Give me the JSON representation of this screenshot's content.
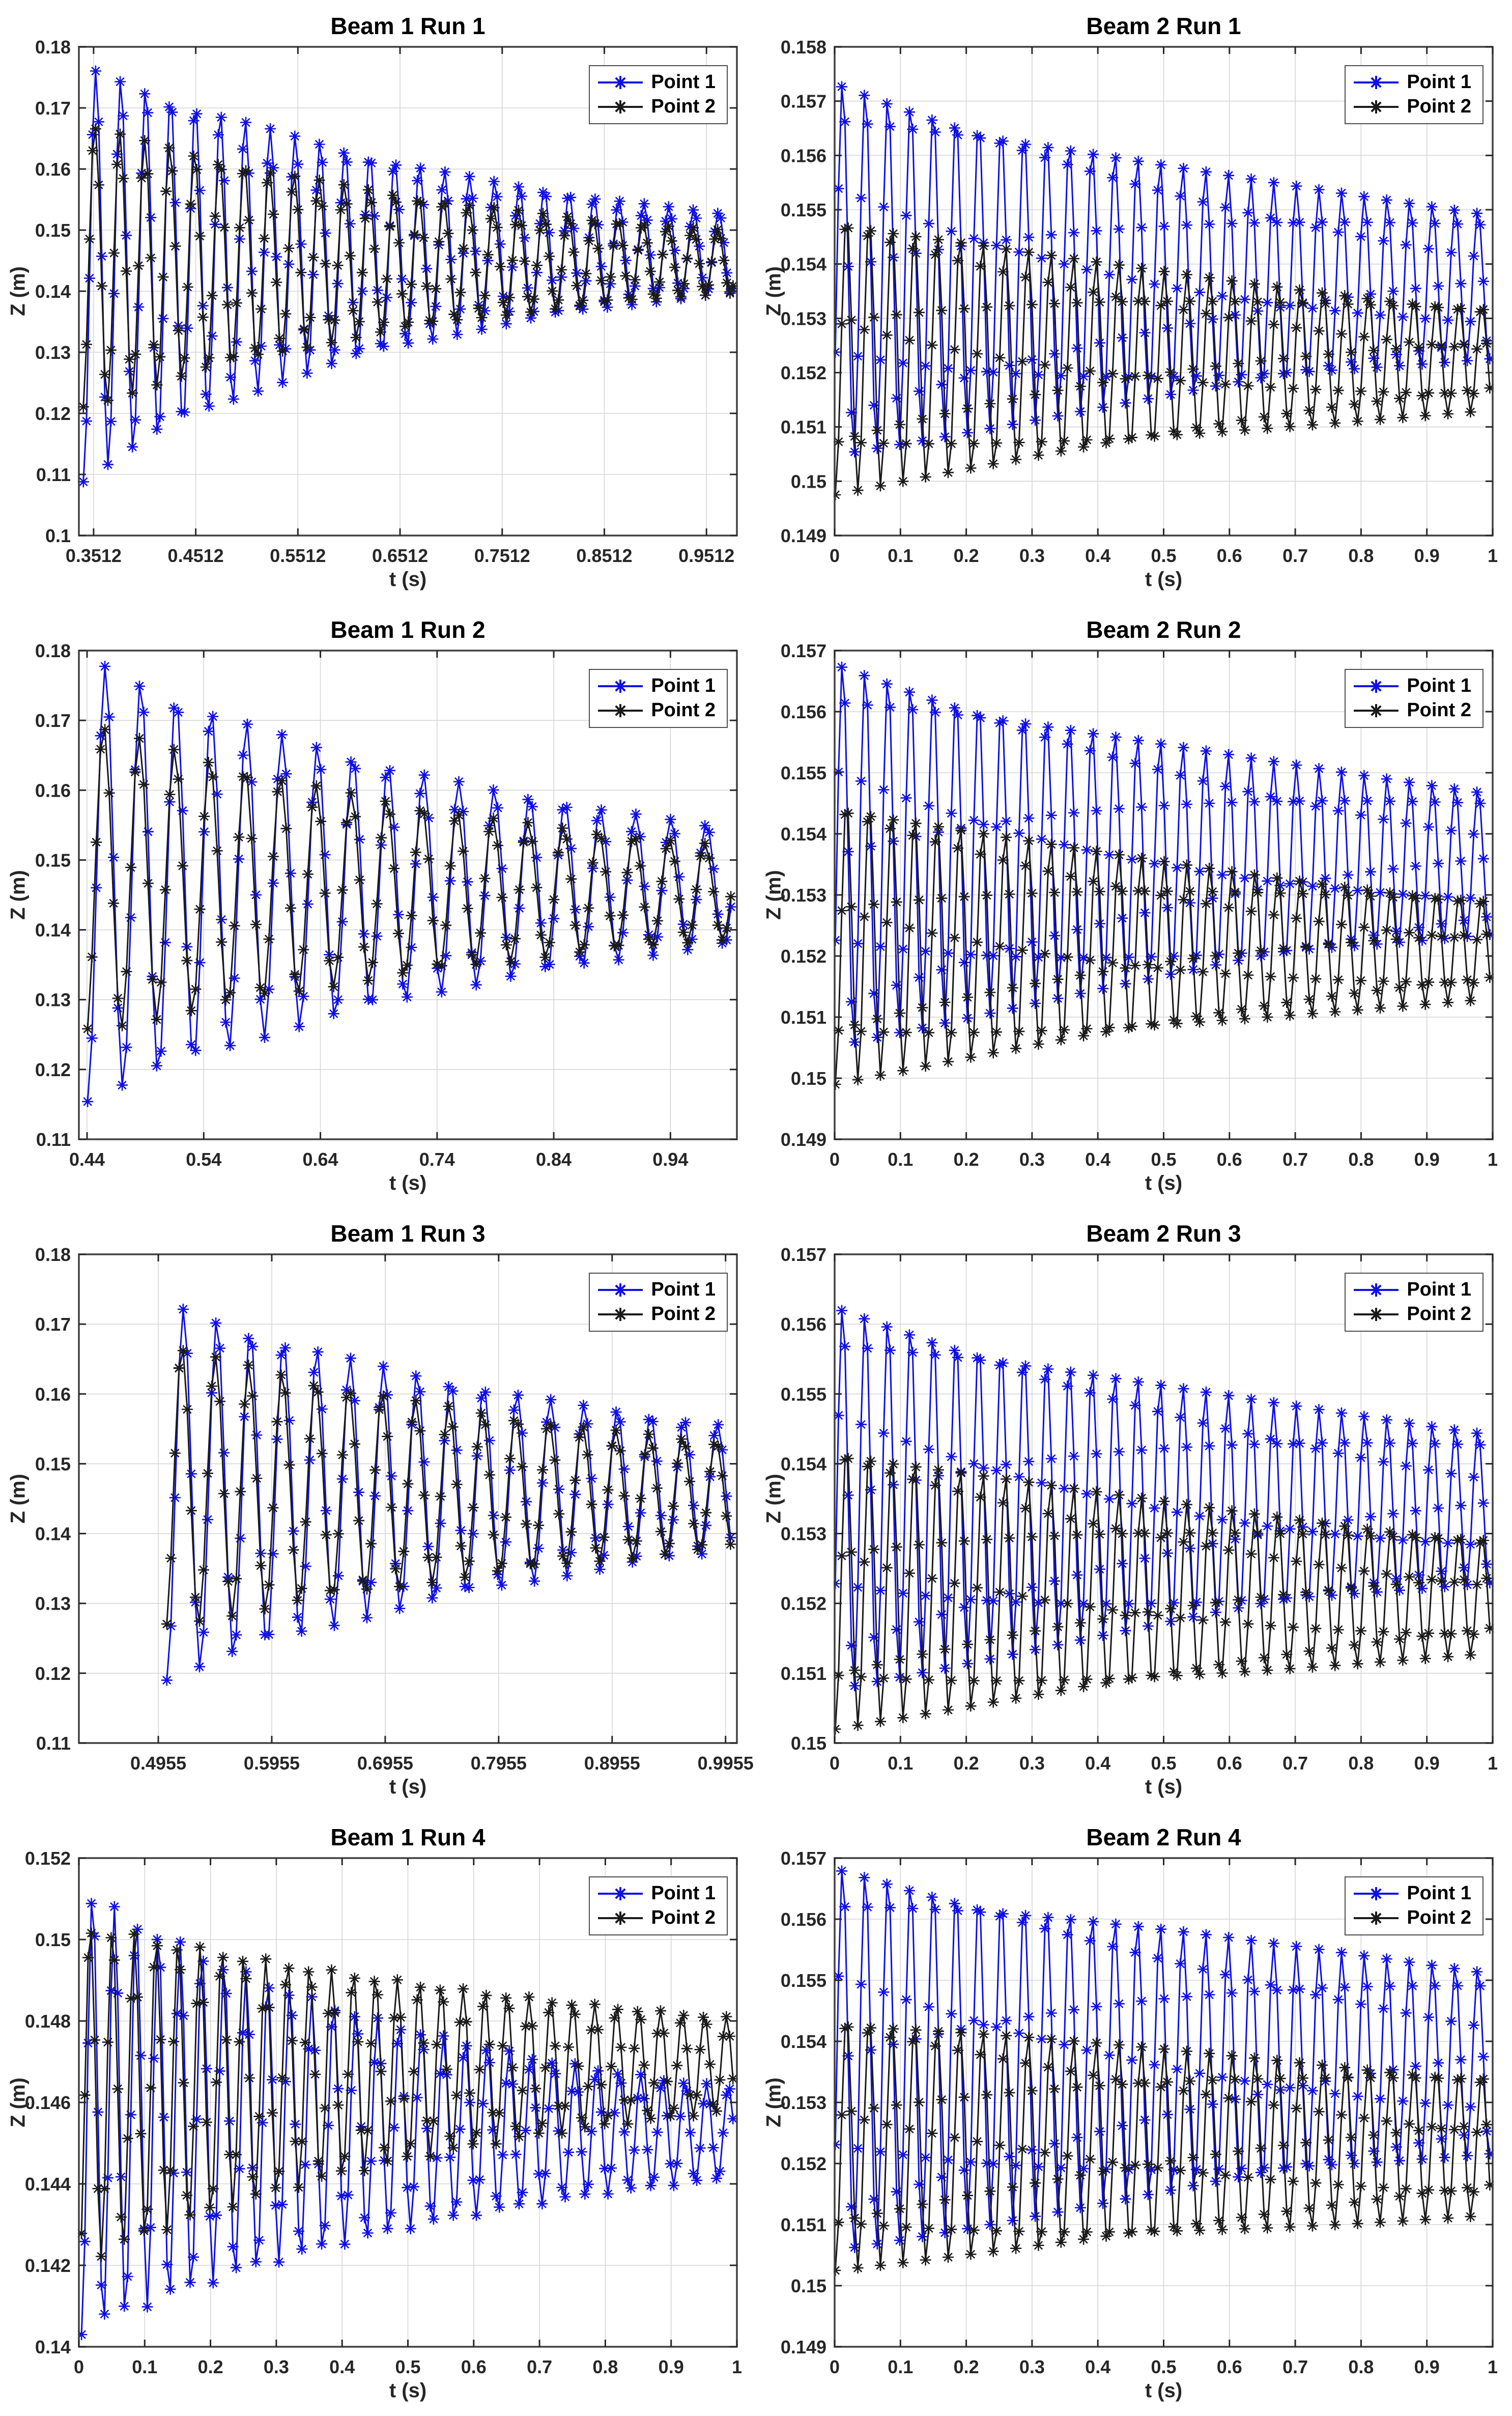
{
  "page": {
    "background": "#ffffff",
    "layout": "4x2 subplot grid"
  },
  "colors": {
    "point1": "#0F0FE6",
    "point2": "#1a1a1a",
    "grid": "#d6d6d6",
    "axis": "#404040",
    "tick_text": "#262626"
  },
  "legend": {
    "position": "top-right",
    "entries": [
      "Point 1",
      "Point 2"
    ]
  },
  "chart_data": [
    {
      "type": "line",
      "title": "Beam 1 Run 1",
      "xlabel": "t (s)",
      "ylabel": "Z (m)",
      "grid": true,
      "legend_position": "top-right",
      "xlim": [
        0.3368,
        0.981
      ],
      "ylim": [
        0.1,
        0.18
      ],
      "xtick_values": [
        0.3512,
        0.4512,
        0.5512,
        0.6512,
        0.7512,
        0.8512,
        0.9512
      ],
      "xtick_labels": [
        "0.3512",
        "0.4512",
        "0.5512",
        "0.6512",
        "0.7512",
        "0.8512",
        "0.9512"
      ],
      "ytick_values": [
        0.1,
        0.11,
        0.12,
        0.13,
        0.14,
        0.15,
        0.16,
        0.17,
        0.18
      ],
      "ytick_labels": [
        "0.1",
        "0.11",
        "0.12",
        "0.13",
        "0.14",
        "0.15",
        "0.16",
        "0.17",
        "0.18"
      ],
      "series": [
        {
          "name": "Point 1",
          "color": "#0F0FE6",
          "marker": "*",
          "t_start": 0.3412,
          "t_end": 0.979,
          "dt": 0.003,
          "mean_start": 0.1428,
          "mean_end": 0.1462,
          "mean_tau": 0.12,
          "amp0": 0.034,
          "damping": 2.6,
          "freq_hz": 41,
          "phase_rad": -1.5708
        },
        {
          "name": "Point 2",
          "color": "#1a1a1a",
          "marker": "*",
          "t_start": 0.3412,
          "t_end": 0.979,
          "dt": 0.003,
          "mean_start": 0.144,
          "mean_end": 0.1448,
          "mean_tau": 0.12,
          "amp0": 0.0235,
          "damping": 2.4,
          "freq_hz": 41,
          "phase_rad": -1.35
        }
      ]
    },
    {
      "type": "line",
      "title": "Beam 2 Run 1",
      "xlabel": "t (s)",
      "ylabel": "Z (m)",
      "grid": true,
      "legend_position": "top-right",
      "xlim": [
        0,
        1
      ],
      "ylim": [
        0.149,
        0.158
      ],
      "xtick_values": [
        0,
        0.1,
        0.2,
        0.3,
        0.4,
        0.5,
        0.6,
        0.7,
        0.8,
        0.9,
        1
      ],
      "xtick_labels": [
        "0",
        "0.1",
        "0.2",
        "0.3",
        "0.4",
        "0.5",
        "0.6",
        "0.7",
        "0.8",
        "0.9",
        "1"
      ],
      "ytick_values": [
        0.149,
        0.15,
        0.151,
        0.152,
        0.153,
        0.154,
        0.155,
        0.156,
        0.157,
        0.158
      ],
      "ytick_labels": [
        "0.149",
        "0.15",
        "0.151",
        "0.152",
        "0.153",
        "0.154",
        "0.155",
        "0.156",
        "0.157",
        "0.158"
      ],
      "series": [
        {
          "name": "Point 1",
          "color": "#0F0FE6",
          "marker": "*",
          "t_start": 0.001,
          "t_end": 0.999,
          "dt": 0.0049,
          "mean_start": 0.1539,
          "mean_end": 0.15355,
          "mean_tau": 0.5,
          "amp0": 0.0035,
          "damping": 0.95,
          "freq_hz": 29,
          "phase_rad": -0.45
        },
        {
          "name": "Point 2",
          "color": "#1a1a1a",
          "marker": "*",
          "t_start": 0.001,
          "t_end": 0.999,
          "dt": 0.0049,
          "mean_start": 0.15235,
          "mean_end": 0.15225,
          "mean_tau": 0.5,
          "amp0": 0.0026,
          "damping": 1.0,
          "freq_hz": 29,
          "phase_rad": -1.5708
        }
      ]
    },
    {
      "type": "line",
      "title": "Beam 1 Run 2",
      "xlabel": "t (s)",
      "ylabel": "Z (m)",
      "grid": true,
      "legend_position": "top-right",
      "xlim": [
        0.433,
        0.997
      ],
      "ylim": [
        0.11,
        0.18
      ],
      "xtick_values": [
        0.44,
        0.54,
        0.64,
        0.74,
        0.84,
        0.94
      ],
      "xtick_labels": [
        "0.44",
        "0.54",
        "0.64",
        "0.74",
        "0.84",
        "0.94"
      ],
      "ytick_values": [
        0.11,
        0.12,
        0.13,
        0.14,
        0.15,
        0.16,
        0.17,
        0.18
      ],
      "ytick_labels": [
        "0.11",
        "0.12",
        "0.13",
        "0.14",
        "0.15",
        "0.16",
        "0.17",
        "0.18"
      ],
      "series": [
        {
          "name": "Point 1",
          "color": "#0F0FE6",
          "marker": "*",
          "t_start": 0.4405,
          "t_end": 0.9945,
          "dt": 0.0037,
          "mean_start": 0.1472,
          "mean_end": 0.1462,
          "mean_tau": 0.2,
          "amp0": 0.0318,
          "damping": 2.4,
          "freq_hz": 33,
          "phase_rad": -1.5708
        },
        {
          "name": "Point 2",
          "color": "#1a1a1a",
          "marker": "*",
          "t_start": 0.4405,
          "t_end": 0.9945,
          "dt": 0.0037,
          "mean_start": 0.1475,
          "mean_end": 0.1452,
          "mean_tau": 0.2,
          "amp0": 0.0225,
          "damping": 2.2,
          "freq_hz": 33,
          "phase_rad": -1.3
        }
      ]
    },
    {
      "type": "line",
      "title": "Beam 2 Run 2",
      "xlabel": "t (s)",
      "ylabel": "Z (m)",
      "grid": true,
      "legend_position": "top-right",
      "xlim": [
        0,
        1
      ],
      "ylim": [
        0.149,
        0.157
      ],
      "xtick_values": [
        0,
        0.1,
        0.2,
        0.3,
        0.4,
        0.5,
        0.6,
        0.7,
        0.8,
        0.9,
        1
      ],
      "xtick_labels": [
        "0",
        "0.1",
        "0.2",
        "0.3",
        "0.4",
        "0.5",
        "0.6",
        "0.7",
        "0.8",
        "0.9",
        "1"
      ],
      "ytick_values": [
        0.149,
        0.15,
        0.151,
        0.152,
        0.153,
        0.154,
        0.155,
        0.156,
        0.157
      ],
      "ytick_labels": [
        "0.149",
        "0.15",
        "0.151",
        "0.152",
        "0.153",
        "0.154",
        "0.155",
        "0.156",
        "0.157"
      ],
      "series": [
        {
          "name": "Point 1",
          "color": "#0F0FE6",
          "marker": "*",
          "t_start": 0.001,
          "t_end": 0.999,
          "dt": 0.0049,
          "mean_start": 0.15365,
          "mean_end": 0.1535,
          "mean_tau": 0.5,
          "amp0": 0.0032,
          "damping": 1.0,
          "freq_hz": 29,
          "phase_rad": -0.45
        },
        {
          "name": "Point 2",
          "color": "#1a1a1a",
          "marker": "*",
          "t_start": 0.001,
          "t_end": 0.999,
          "dt": 0.0049,
          "mean_start": 0.15225,
          "mean_end": 0.1521,
          "mean_tau": 0.5,
          "amp0": 0.00235,
          "damping": 1.05,
          "freq_hz": 29,
          "phase_rad": -1.5708
        }
      ]
    },
    {
      "type": "line",
      "title": "Beam 1 Run 3",
      "xlabel": "t (s)",
      "ylabel": "Z (m)",
      "grid": true,
      "legend_position": "top-right",
      "xlim": [
        0.4255,
        1.0055
      ],
      "ylim": [
        0.11,
        0.18
      ],
      "xtick_values": [
        0.4955,
        0.5955,
        0.6955,
        0.7955,
        0.8955,
        0.9955
      ],
      "xtick_labels": [
        "0.4955",
        "0.5955",
        "0.6955",
        "0.7955",
        "0.8955",
        "0.9955"
      ],
      "ytick_values": [
        0.11,
        0.12,
        0.13,
        0.14,
        0.15,
        0.16,
        0.17,
        0.18
      ],
      "ytick_labels": [
        "0.11",
        "0.12",
        "0.13",
        "0.14",
        "0.15",
        "0.16",
        "0.17",
        "0.18"
      ],
      "series": [
        {
          "name": "Point 1",
          "color": "#0F0FE6",
          "marker": "*",
          "t_start": 0.503,
          "t_end": 1.0005,
          "dt": 0.0036,
          "mean_start": 0.146,
          "mean_end": 0.1465,
          "mean_tau": 0.25,
          "amp0": 0.027,
          "damping": 2.2,
          "freq_hz": 34,
          "phase_rad": -1.5708
        },
        {
          "name": "Point 2",
          "color": "#1a1a1a",
          "marker": "*",
          "t_start": 0.503,
          "t_end": 1.0005,
          "dt": 0.0036,
          "mean_start": 0.1468,
          "mean_end": 0.1452,
          "mean_tau": 0.25,
          "amp0": 0.0205,
          "damping": 2.0,
          "freq_hz": 34,
          "phase_rad": -1.3
        }
      ]
    },
    {
      "type": "line",
      "title": "Beam 2 Run 3",
      "xlabel": "t (s)",
      "ylabel": "Z (m)",
      "grid": true,
      "legend_position": "top-right",
      "xlim": [
        0,
        1
      ],
      "ylim": [
        0.15,
        0.157
      ],
      "xtick_values": [
        0,
        0.1,
        0.2,
        0.3,
        0.4,
        0.5,
        0.6,
        0.7,
        0.8,
        0.9,
        1
      ],
      "xtick_labels": [
        "0",
        "0.1",
        "0.2",
        "0.3",
        "0.4",
        "0.5",
        "0.6",
        "0.7",
        "0.8",
        "0.9",
        "1"
      ],
      "ytick_values": [
        0.15,
        0.151,
        0.152,
        0.153,
        0.154,
        0.155,
        0.156,
        0.157
      ],
      "ytick_labels": [
        "0.15",
        "0.151",
        "0.152",
        "0.153",
        "0.154",
        "0.155",
        "0.156",
        "0.157"
      ],
      "series": [
        {
          "name": "Point 1",
          "color": "#0F0FE6",
          "marker": "*",
          "t_start": 0.001,
          "t_end": 0.999,
          "dt": 0.0049,
          "mean_start": 0.1535,
          "mean_end": 0.15335,
          "mean_tau": 0.5,
          "amp0": 0.0028,
          "damping": 0.95,
          "freq_hz": 29,
          "phase_rad": -0.45
        },
        {
          "name": "Point 2",
          "color": "#1a1a1a",
          "marker": "*",
          "t_start": 0.001,
          "t_end": 0.999,
          "dt": 0.0049,
          "mean_start": 0.15225,
          "mean_end": 0.1521,
          "mean_tau": 0.5,
          "amp0": 0.00205,
          "damping": 0.9,
          "freq_hz": 29,
          "phase_rad": -1.5708
        }
      ]
    },
    {
      "type": "line",
      "title": "Beam 1 Run 4",
      "xlabel": "t (s)",
      "ylabel": "Z (m)",
      "grid": true,
      "legend_position": "top-right",
      "xlim": [
        0,
        1
      ],
      "ylim": [
        0.14,
        0.152
      ],
      "xtick_values": [
        0,
        0.1,
        0.2,
        0.3,
        0.4,
        0.5,
        0.6,
        0.7,
        0.8,
        0.9,
        1
      ],
      "xtick_labels": [
        "0",
        "0.1",
        "0.2",
        "0.3",
        "0.4",
        "0.5",
        "0.6",
        "0.7",
        "0.8",
        "0.9",
        "1"
      ],
      "ytick_values": [
        0.14,
        0.142,
        0.144,
        0.146,
        0.148,
        0.15,
        0.152
      ],
      "ytick_labels": [
        "0.14",
        "0.142",
        "0.144",
        "0.146",
        "0.148",
        "0.15",
        "0.152"
      ],
      "series": [
        {
          "name": "Point 1",
          "color": "#0F0FE6",
          "marker": "*",
          "t_start": 0.004,
          "t_end": 0.998,
          "dt": 0.005,
          "mean_start": 0.1458,
          "mean_end": 0.1452,
          "mean_tau": 0.4,
          "amp0": 0.0055,
          "damping": 1.6,
          "freq_hz": 30,
          "phase_rad": -1.5708
        },
        {
          "name": "Point 2",
          "color": "#1a1a1a",
          "marker": "*",
          "t_start": 0.004,
          "t_end": 0.998,
          "dt": 0.005,
          "mean_start": 0.1462,
          "mean_end": 0.147,
          "mean_tau": 0.4,
          "amp0": 0.0042,
          "damping": 1.3,
          "freq_hz": 30,
          "phase_rad": -0.95
        }
      ]
    },
    {
      "type": "line",
      "title": "Beam 2 Run 4",
      "xlabel": "t (s)",
      "ylabel": "Z (m)",
      "grid": true,
      "legend_position": "top-right",
      "xlim": [
        0,
        1
      ],
      "ylim": [
        0.149,
        0.157
      ],
      "xtick_values": [
        0,
        0.1,
        0.2,
        0.3,
        0.4,
        0.5,
        0.6,
        0.7,
        0.8,
        0.9,
        1
      ],
      "xtick_labels": [
        "0",
        "0.1",
        "0.2",
        "0.3",
        "0.4",
        "0.5",
        "0.6",
        "0.7",
        "0.8",
        "0.9",
        "1"
      ],
      "ytick_values": [
        0.149,
        0.15,
        0.151,
        0.152,
        0.153,
        0.154,
        0.155,
        0.156,
        0.157
      ],
      "ytick_labels": [
        "0.149",
        "0.15",
        "0.151",
        "0.152",
        "0.153",
        "0.154",
        "0.155",
        "0.156",
        "0.157"
      ],
      "series": [
        {
          "name": "Point 1",
          "color": "#0F0FE6",
          "marker": "*",
          "t_start": 0.001,
          "t_end": 0.999,
          "dt": 0.0049,
          "mean_start": 0.1537,
          "mean_end": 0.15365,
          "mean_tau": 0.5,
          "amp0": 0.0032,
          "damping": 0.75,
          "freq_hz": 29,
          "phase_rad": -0.45
        },
        {
          "name": "Point 2",
          "color": "#1a1a1a",
          "marker": "*",
          "t_start": 0.001,
          "t_end": 0.999,
          "dt": 0.0049,
          "mean_start": 0.15235,
          "mean_end": 0.1523,
          "mean_tau": 0.5,
          "amp0": 0.0021,
          "damping": 0.6,
          "freq_hz": 29,
          "phase_rad": -1.5708
        }
      ]
    }
  ]
}
